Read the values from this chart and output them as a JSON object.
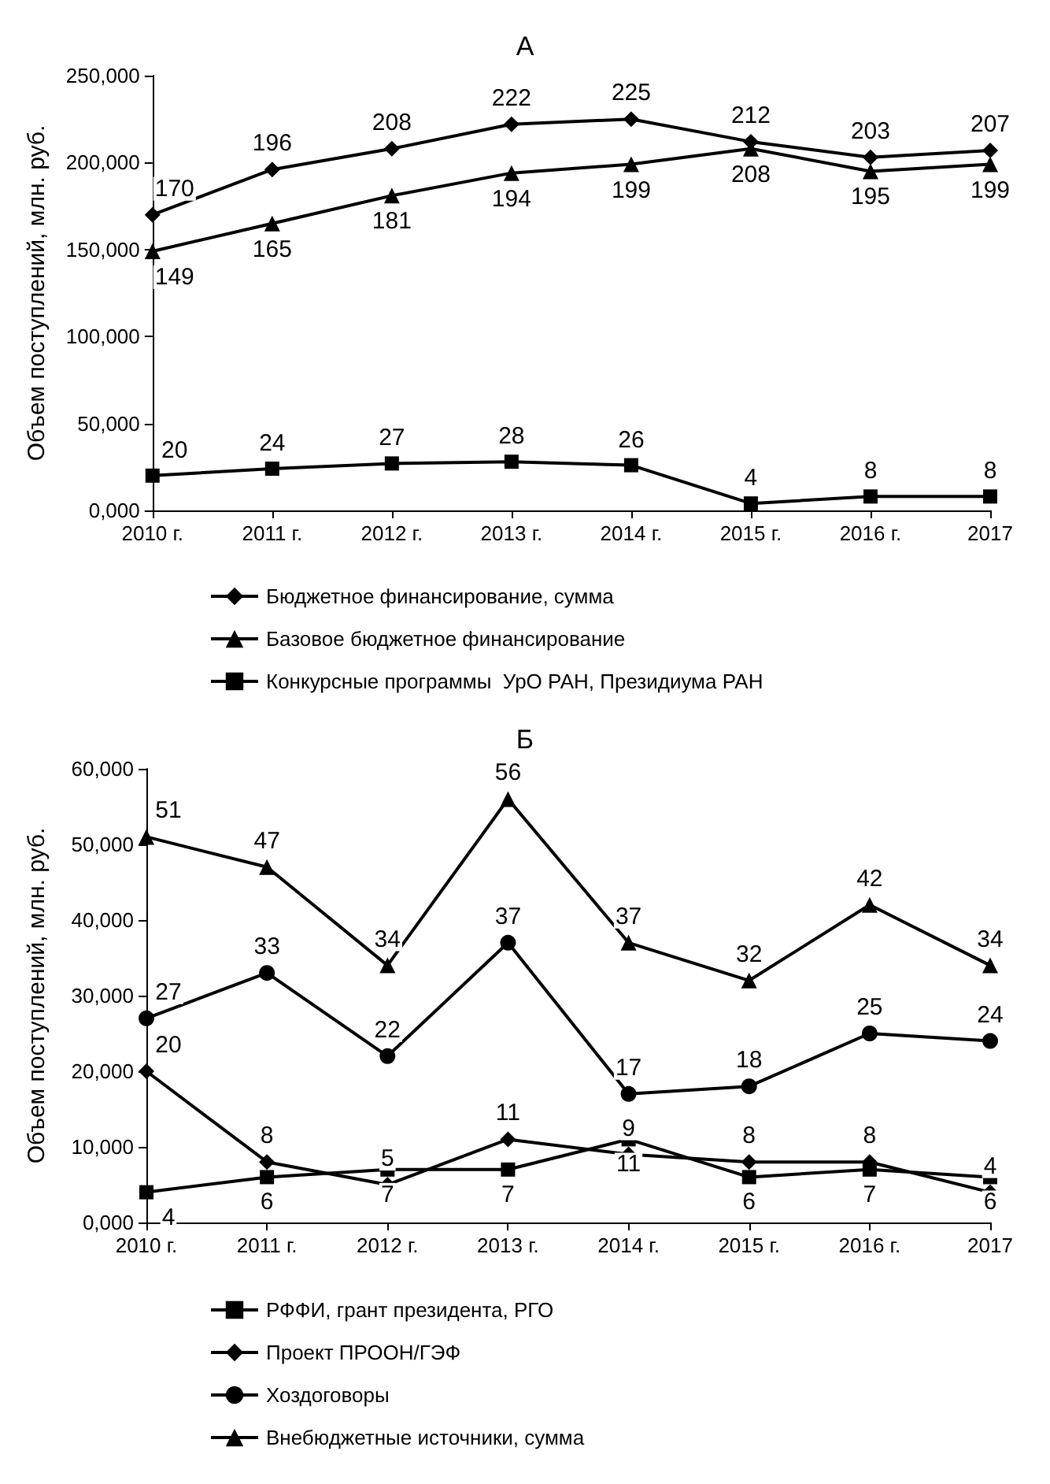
{
  "chart_data": [
    {
      "type": "line",
      "title": "А",
      "ylabel": "Объем поступлений, млн. руб.",
      "categories": [
        "2010 г.",
        "2011 г.",
        "2012 г.",
        "2013 г.",
        "2014 г.",
        "2015 г.",
        "2016 г.",
        "2017"
      ],
      "series": [
        {
          "name": "Бюджетное финансирование, сумма",
          "color": "#000000",
          "marker": "diamond",
          "values": [
            170,
            196,
            208,
            222,
            225,
            212,
            203,
            207
          ]
        },
        {
          "name": "Базовое бюджетное финансирование",
          "color": "#000000",
          "marker": "triangle",
          "values": [
            149,
            165,
            181,
            194,
            199,
            208,
            195,
            199
          ]
        },
        {
          "name": "Конкурсные программы  УрО РАН, Президиума РАН",
          "color": "#000000",
          "marker": "square",
          "values": [
            20,
            24,
            27,
            28,
            26,
            4,
            8,
            8
          ]
        }
      ],
      "ylim": [
        0,
        250
      ],
      "yticks": [
        {
          "value": 0,
          "label": "0,000"
        },
        {
          "value": 50,
          "label": "50,000"
        },
        {
          "value": 100,
          "label": "100,000"
        },
        {
          "value": 150,
          "label": "150,000"
        },
        {
          "value": 200,
          "label": "200,000"
        },
        {
          "value": 250,
          "label": "250,000"
        }
      ],
      "grid": false,
      "legend": "bottom",
      "data_labels": true
    },
    {
      "type": "line",
      "title": "Б",
      "ylabel": "Объем поступлений, млн. руб.",
      "categories": [
        "2010 г.",
        "2011 г.",
        "2012 г.",
        "2013 г.",
        "2014 г.",
        "2015 г.",
        "2016 г.",
        "2017"
      ],
      "series": [
        {
          "name": "РФФИ, грант президента, РГО",
          "color": "#000000",
          "marker": "square",
          "values": [
            4,
            6,
            7,
            7,
            11,
            6,
            7,
            6
          ]
        },
        {
          "name": "Проект ПРООН/ГЭФ",
          "color": "#000000",
          "marker": "diamond",
          "values": [
            20,
            8,
            5,
            11,
            9,
            8,
            8,
            4
          ]
        },
        {
          "name": "Хоздоговоры",
          "color": "#000000",
          "marker": "circle",
          "values": [
            27,
            33,
            22,
            37,
            17,
            18,
            25,
            24
          ]
        },
        {
          "name": "Внебюджетные источники, сумма",
          "color": "#000000",
          "marker": "triangle",
          "values": [
            51,
            47,
            34,
            56,
            37,
            32,
            42,
            34
          ]
        }
      ],
      "ylim": [
        0,
        60
      ],
      "yticks": [
        {
          "value": 0,
          "label": "0,000"
        },
        {
          "value": 10,
          "label": "10,000"
        },
        {
          "value": 20,
          "label": "20,000"
        },
        {
          "value": 30,
          "label": "30,000"
        },
        {
          "value": 40,
          "label": "40,000"
        },
        {
          "value": 50,
          "label": "50,000"
        },
        {
          "value": 60,
          "label": "60,000"
        }
      ],
      "grid": false,
      "legend": "bottom",
      "data_labels": true
    }
  ]
}
